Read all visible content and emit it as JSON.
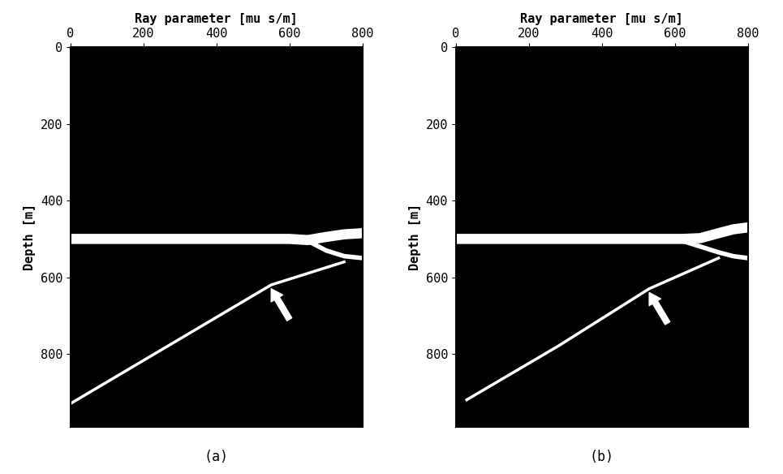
{
  "chart_data": [
    {
      "type": "line",
      "caption": "(a)",
      "x_label": "Ray parameter [mu s/m]",
      "y_label": "Depth [m]",
      "xlim": [
        0,
        800
      ],
      "ylim": [
        990,
        0
      ],
      "xticks": [
        0,
        200,
        400,
        600,
        800
      ],
      "yticks": [
        0,
        200,
        400,
        600,
        800
      ],
      "grid": false,
      "series": [
        {
          "color": "#ffffff",
          "line_style": "solid",
          "x": [
            0,
            600,
            650,
            700,
            750,
            800
          ],
          "values": [
            500,
            500,
            503,
            495,
            488,
            485
          ]
        },
        {
          "color": "#ffffff",
          "line_style": "solid",
          "x": [
            650,
            700,
            750,
            800
          ],
          "values": [
            505,
            530,
            545,
            550
          ]
        },
        {
          "color": "#ffffff",
          "line_style": "solid",
          "x": [
            0,
            275,
            550,
            750
          ],
          "values": [
            930,
            775,
            620,
            560
          ]
        }
      ]
    },
    {
      "type": "line",
      "caption": "(b)",
      "x_label": "Ray parameter [mu s/m]",
      "y_label": "Depth [m]",
      "xlim": [
        0,
        800
      ],
      "ylim": [
        990,
        0
      ],
      "xticks": [
        0,
        200,
        400,
        600,
        800
      ],
      "yticks": [
        0,
        200,
        400,
        600,
        800
      ],
      "grid": false,
      "series": [
        {
          "color": "#ffffff",
          "line_style": "solid",
          "x": [
            0,
            620,
            670,
            720,
            760,
            800
          ],
          "values": [
            500,
            500,
            498,
            485,
            475,
            470
          ]
        },
        {
          "color": "#ffffff",
          "line_style": "solid",
          "x": [
            620,
            670,
            720,
            760,
            800
          ],
          "values": [
            505,
            520,
            535,
            545,
            550
          ]
        },
        {
          "color": "#ffffff",
          "line_style": "solid",
          "x": [
            30,
            280,
            530,
            720
          ],
          "values": [
            920,
            780,
            630,
            550
          ]
        }
      ]
    }
  ]
}
